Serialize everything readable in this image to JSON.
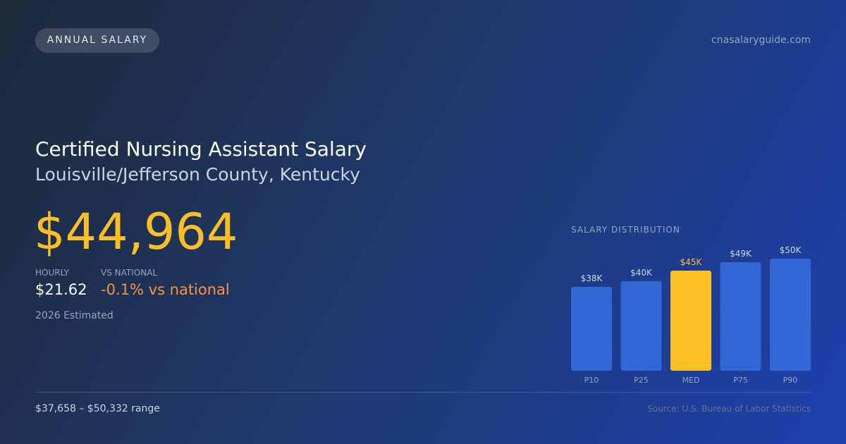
{
  "header": {
    "badge": "ANNUAL SALARY",
    "site": "cnasalaryguide.com"
  },
  "title": "Certified Nursing Assistant Salary",
  "subtitle": "Louisville/Jefferson County, Kentucky",
  "salary": "$44,964",
  "stats": [
    {
      "label": "HOURLY",
      "value": "$21.62"
    },
    {
      "label": "VS NATIONAL",
      "value": "-0.1% vs national"
    }
  ],
  "note": "2026 Estimated",
  "footer": {
    "range": "$37,658 – $50,332 range",
    "source": "Source: U.S. Bureau of Labor Statistics"
  },
  "chart_data": {
    "type": "bar",
    "title": "SALARY DISTRIBUTION",
    "categories": [
      "P10",
      "P25",
      "MED",
      "P75",
      "P90"
    ],
    "values": [
      37.658,
      40.2,
      44.964,
      48.8,
      50.332
    ],
    "value_labels": [
      "$38K",
      "$40K",
      "$45K",
      "$49K",
      "$50K"
    ],
    "colors": [
      "#3366d6",
      "#3366d6",
      "#fbbf24",
      "#3366d6",
      "#3366d6"
    ],
    "label_colors": [
      "#cbd5e1",
      "#cbd5e1",
      "#fbbf24",
      "#cbd5e1",
      "#cbd5e1"
    ]
  }
}
